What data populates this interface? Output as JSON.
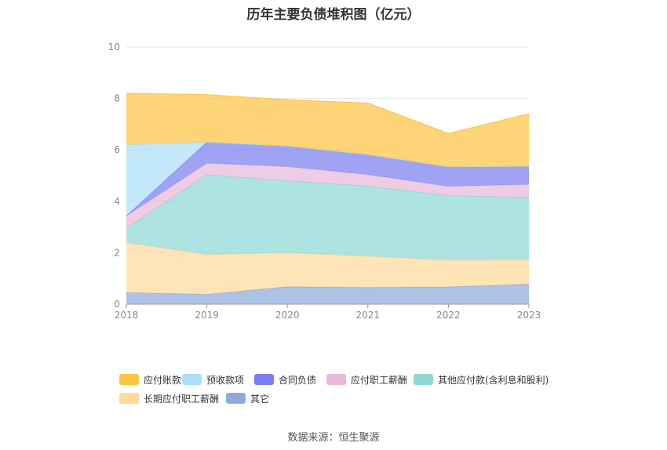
{
  "title": "历年主要负债堆积图（亿元）",
  "source": "数据来源：恒生聚源",
  "chart_data": {
    "type": "area",
    "stacked": true,
    "x": [
      "2018",
      "2019",
      "2020",
      "2021",
      "2022",
      "2023"
    ],
    "ylim": [
      0,
      10
    ],
    "yticks": [
      0,
      2,
      4,
      6,
      8,
      10
    ],
    "grid": true,
    "legend_position": "bottom",
    "series": [
      {
        "name": "其它",
        "color": "#8eaadb",
        "values": [
          0.45,
          0.38,
          0.68,
          0.65,
          0.67,
          0.78
        ]
      },
      {
        "name": "长期应付职工薪酬",
        "color": "#fdd99b",
        "values": [
          1.95,
          1.55,
          1.32,
          1.22,
          1.04,
          0.95
        ]
      },
      {
        "name": "其他应付款(含利息和股利)",
        "color": "#8ed9d6",
        "values": [
          0.55,
          3.1,
          2.8,
          2.72,
          2.51,
          2.42
        ]
      },
      {
        "name": "应付职工薪酬",
        "color": "#e8b8d9",
        "values": [
          0.48,
          0.45,
          0.55,
          0.45,
          0.36,
          0.51
        ]
      },
      {
        "name": "合同负债",
        "color": "#7b7ef0",
        "values": [
          0.0,
          0.82,
          0.8,
          0.78,
          0.76,
          0.7
        ]
      },
      {
        "name": "预收款项",
        "color": "#abdff8",
        "values": [
          2.77,
          0.0,
          0.0,
          0.0,
          0.0,
          0.0
        ]
      },
      {
        "name": "应付账款",
        "color": "#fcc444",
        "values": [
          2.0,
          1.85,
          1.8,
          2.0,
          1.3,
          2.05
        ]
      }
    ],
    "legend_order": [
      "应付账款",
      "预收款项",
      "合同负债",
      "应付职工薪酬",
      "其他应付款(含利息和股利)",
      "长期应付职工薪酬",
      "其它"
    ]
  }
}
